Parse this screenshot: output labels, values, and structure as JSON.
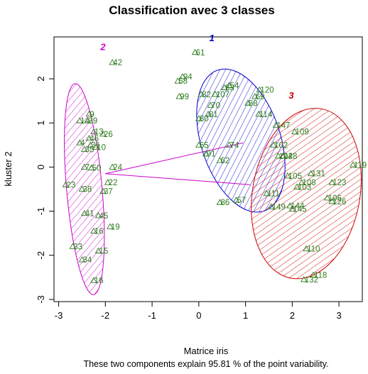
{
  "chart_data": {
    "type": "scatter",
    "title": "Classification avec 3 classes",
    "xlabel": "Matrice iris",
    "ylabel": "kluster 2",
    "subtitle": "These two components explain 95.81 % of the point variability.",
    "xlim": [
      -3.1,
      3.5
    ],
    "ylim": [
      -3.05,
      2.95
    ],
    "xticks": [
      "-3",
      "-2",
      "-1",
      "0",
      "1",
      "2",
      "3"
    ],
    "yticks": [
      "-3",
      "-2",
      "-1",
      "0",
      "1",
      "2"
    ],
    "xtick_values": [
      -3,
      -2,
      -1,
      0,
      1,
      2,
      3
    ],
    "ytick_values": [
      -3,
      -2,
      -1,
      0,
      1,
      2
    ],
    "point_color": "#2e7d1f",
    "clusters": [
      {
        "label": "1",
        "color": "#0000cc",
        "center": [
          0.9,
          0.6
        ],
        "radii": [
          0.85,
          1.68
        ],
        "angle_deg": -18
      },
      {
        "label": "2",
        "color": "#cc00cc",
        "center": [
          -2.45,
          -0.5
        ],
        "radii": [
          0.38,
          2.4
        ],
        "angle_deg": -5
      },
      {
        "label": "3",
        "color": "#cc0000",
        "center": [
          2.3,
          -0.6
        ],
        "radii": [
          1.15,
          1.95
        ],
        "angle_deg": 10
      }
    ],
    "cluster_labels": [
      {
        "text": "1",
        "x": 0.28,
        "y": 2.85,
        "cluster": 0
      },
      {
        "text": "2",
        "x": -2.05,
        "y": 2.65,
        "cluster": 1
      },
      {
        "text": "3",
        "x": 1.98,
        "y": 1.55,
        "cluster": 2
      }
    ],
    "connections": [
      {
        "from": [
          -2.0,
          -0.15
        ],
        "to": [
          0.95,
          0.55
        ],
        "color": "#cc00cc"
      },
      {
        "from": [
          -2.0,
          -0.15
        ],
        "to": [
          1.1,
          -0.4
        ],
        "color": "#cc00cc"
      }
    ],
    "points": [
      {
        "label": "61",
        "x": -0.08,
        "y": 2.6
      },
      {
        "label": "42",
        "x": -1.85,
        "y": 2.37
      },
      {
        "label": "94",
        "x": -0.35,
        "y": 2.05
      },
      {
        "label": "58",
        "x": -0.45,
        "y": 1.95
      },
      {
        "label": "54",
        "x": 0.65,
        "y": 1.85
      },
      {
        "label": "120",
        "x": 1.3,
        "y": 1.75
      },
      {
        "label": "63",
        "x": 0.55,
        "y": 1.8
      },
      {
        "label": "99",
        "x": -0.42,
        "y": 1.6
      },
      {
        "label": "82",
        "x": 0.05,
        "y": 1.65
      },
      {
        "label": "107",
        "x": 0.35,
        "y": 1.65
      },
      {
        "label": "69",
        "x": 1.2,
        "y": 1.6
      },
      {
        "label": "88",
        "x": 1.05,
        "y": 1.45
      },
      {
        "label": "70",
        "x": 0.25,
        "y": 1.4
      },
      {
        "label": "9",
        "x": -2.35,
        "y": 1.2
      },
      {
        "label": "14",
        "x": -2.55,
        "y": 1.05
      },
      {
        "label": "39",
        "x": -2.38,
        "y": 1.05
      },
      {
        "label": "81",
        "x": 0.2,
        "y": 1.2
      },
      {
        "label": "80",
        "x": 0.0,
        "y": 1.1
      },
      {
        "label": "114",
        "x": 1.28,
        "y": 1.2
      },
      {
        "label": "147",
        "x": 1.65,
        "y": 0.95
      },
      {
        "label": "109",
        "x": 2.05,
        "y": 0.8
      },
      {
        "label": "13",
        "x": -2.25,
        "y": 0.8
      },
      {
        "label": "26",
        "x": -2.05,
        "y": 0.75
      },
      {
        "label": "46",
        "x": -2.35,
        "y": 0.65
      },
      {
        "label": "4",
        "x": -2.55,
        "y": 0.55
      },
      {
        "label": "31",
        "x": -2.32,
        "y": 0.5
      },
      {
        "label": "10",
        "x": -2.2,
        "y": 0.45
      },
      {
        "label": "35",
        "x": -2.45,
        "y": 0.4
      },
      {
        "label": "65",
        "x": 0.0,
        "y": 0.5
      },
      {
        "label": "74",
        "x": 0.65,
        "y": 0.5
      },
      {
        "label": "102",
        "x": 1.6,
        "y": 0.5
      },
      {
        "label": "104",
        "x": 1.7,
        "y": 0.25
      },
      {
        "label": "128",
        "x": 1.8,
        "y": 0.25
      },
      {
        "label": "119",
        "x": 3.3,
        "y": 0.05
      },
      {
        "label": "91",
        "x": 0.15,
        "y": 0.3
      },
      {
        "label": "62",
        "x": 0.45,
        "y": 0.15
      },
      {
        "label": "24",
        "x": -1.85,
        "y": 0.0
      },
      {
        "label": "7",
        "x": -2.45,
        "y": 0.0
      },
      {
        "label": "50",
        "x": -2.3,
        "y": -0.02
      },
      {
        "label": "131",
        "x": 2.4,
        "y": -0.15
      },
      {
        "label": "105",
        "x": 1.9,
        "y": -0.2
      },
      {
        "label": "108",
        "x": 2.2,
        "y": -0.35
      },
      {
        "label": "123",
        "x": 2.85,
        "y": -0.35
      },
      {
        "label": "103",
        "x": 2.1,
        "y": -0.45
      },
      {
        "label": "23",
        "x": -2.85,
        "y": -0.4
      },
      {
        "label": "22",
        "x": -1.95,
        "y": -0.35
      },
      {
        "label": "38",
        "x": -2.5,
        "y": -0.5
      },
      {
        "label": "37",
        "x": -2.05,
        "y": -0.55
      },
      {
        "label": "111",
        "x": 1.45,
        "y": -0.6
      },
      {
        "label": "106",
        "x": 2.75,
        "y": -0.7
      },
      {
        "label": "126",
        "x": 2.85,
        "y": -0.78
      },
      {
        "label": "86",
        "x": 0.45,
        "y": -0.8
      },
      {
        "label": "57",
        "x": 0.8,
        "y": -0.75
      },
      {
        "label": "149",
        "x": 1.55,
        "y": -0.9
      },
      {
        "label": "144",
        "x": 1.95,
        "y": -0.88
      },
      {
        "label": "145",
        "x": 2.0,
        "y": -0.95
      },
      {
        "label": "41",
        "x": -2.45,
        "y": -1.05
      },
      {
        "label": "45",
        "x": -2.15,
        "y": -1.1
      },
      {
        "label": "16",
        "x": -2.25,
        "y": -1.45
      },
      {
        "label": "19",
        "x": -1.9,
        "y": -1.35
      },
      {
        "label": "33",
        "x": -2.7,
        "y": -1.8
      },
      {
        "label": "15",
        "x": -2.15,
        "y": -1.9
      },
      {
        "label": "110",
        "x": 2.3,
        "y": -1.85
      },
      {
        "label": "34",
        "x": -2.5,
        "y": -2.1
      },
      {
        "label": "118",
        "x": 2.45,
        "y": -2.45
      },
      {
        "label": "132",
        "x": 2.25,
        "y": -2.55
      },
      {
        "label": "16",
        "x": -2.25,
        "y": -2.57
      }
    ]
  }
}
